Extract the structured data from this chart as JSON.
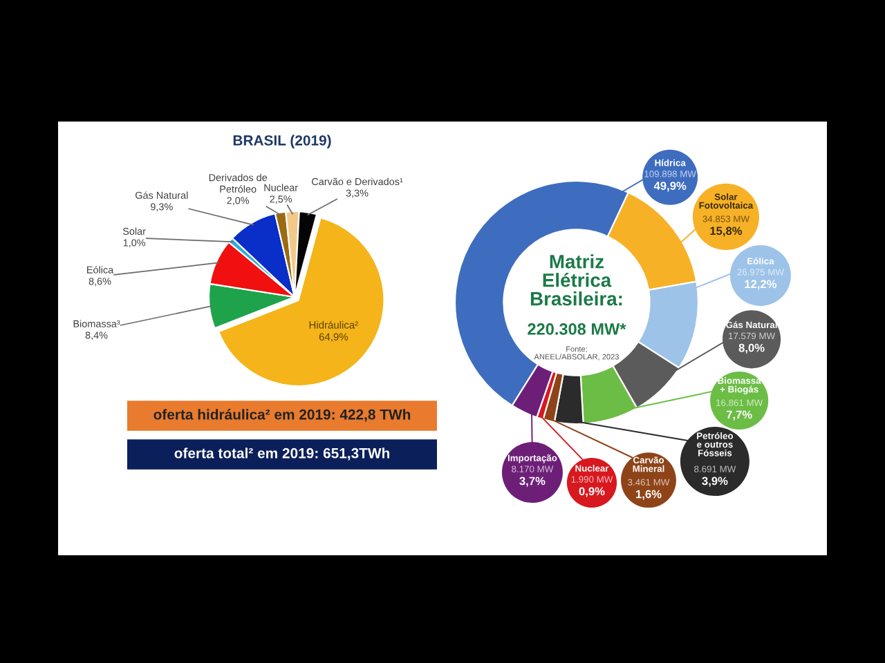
{
  "chart_data": [
    {
      "type": "pie",
      "title": "BRASIL (2019)",
      "categories": [
        "Hidráulica²",
        "Biomassa³",
        "Eólica",
        "Solar",
        "Gás Natural",
        "Derivados de\nPetróleo",
        "Nuclear",
        "Carvão e Derivados¹"
      ],
      "values": [
        64.9,
        8.4,
        8.6,
        1.0,
        9.3,
        2.0,
        2.5,
        3.3
      ],
      "colors": [
        "#f4b41a",
        "#1ea34b",
        "#f01010",
        "#2fa9dc",
        "#0a2ec8",
        "#9b6a12",
        "#f3c98a",
        "#050505"
      ],
      "value_labels": [
        "64,9%",
        "8,4%",
        "8,6%",
        "1,0%",
        "9,3%",
        "2,0%",
        "2,5%",
        "3,3%"
      ],
      "annotations": [
        "oferta hidráulica² em 2019: 422,8 TWh",
        "oferta total² em 2019: 651,3TWh"
      ]
    },
    {
      "type": "donut",
      "title": "Matriz\nElétrica\nBrasileira:",
      "subtitle": "220.308 MW*",
      "categories": [
        "Hídrica",
        "Solar\nFotovoltaica",
        "Eólica",
        "Gás Natural",
        "Biomassa\n+ Biogás",
        "Petróleo\ne outros\nFósseis",
        "Carvão\nMineral",
        "Nuclear",
        "Importação"
      ],
      "values": [
        109898,
        34853,
        26975,
        17579,
        16861,
        8691,
        3461,
        1990,
        8170
      ],
      "colors": [
        "#3e6dbf",
        "#f7b126",
        "#9dc3e8",
        "#5b5b5b",
        "#6bbd45",
        "#2b2b2b",
        "#8e4418",
        "#d7191f",
        "#6d1f78"
      ],
      "value_labels": [
        "109.898 MW\n49,9%",
        "34.853 MW\n15,8%",
        "26.975 MW\n12,2%",
        "17.579 MW\n8,0%",
        "16.861 MW\n7,7%",
        "8.691 MW\n3,9%",
        "3.461 MW\n1,6%",
        "1.990 MW\n0,9%",
        "8.170 MW\n3,7%"
      ],
      "annotations": [
        "Fonte:\nANEEL/ABSOLAR, 2023"
      ]
    }
  ]
}
